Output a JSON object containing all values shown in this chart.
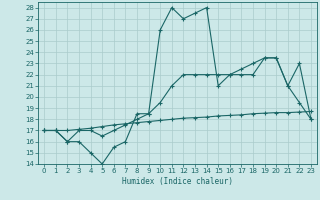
{
  "xlabel": "Humidex (Indice chaleur)",
  "bg_color": "#cce8e8",
  "grid_color": "#aacccc",
  "line_color": "#1a6666",
  "xlim": [
    -0.5,
    23.5
  ],
  "ylim": [
    14,
    28.5
  ],
  "xticks": [
    0,
    1,
    2,
    3,
    4,
    5,
    6,
    7,
    8,
    9,
    10,
    11,
    12,
    13,
    14,
    15,
    16,
    17,
    18,
    19,
    20,
    21,
    22,
    23
  ],
  "yticks": [
    14,
    15,
    16,
    17,
    18,
    19,
    20,
    21,
    22,
    23,
    24,
    25,
    26,
    27,
    28
  ],
  "line1_x": [
    0,
    1,
    2,
    3,
    4,
    5,
    6,
    7,
    8,
    9,
    10,
    11,
    12,
    13,
    14,
    15,
    16,
    17,
    18,
    19,
    20,
    21,
    22,
    23
  ],
  "line1_y": [
    17,
    17,
    16,
    16,
    15,
    14,
    15.5,
    16,
    18.5,
    18.5,
    26,
    28,
    27,
    27.5,
    28,
    21,
    22,
    22,
    22,
    23.5,
    23.5,
    21,
    23,
    18
  ],
  "line2_x": [
    0,
    1,
    2,
    3,
    4,
    5,
    6,
    7,
    8,
    9,
    10,
    11,
    12,
    13,
    14,
    15,
    16,
    17,
    18,
    19,
    20,
    21,
    22,
    23
  ],
  "line2_y": [
    17,
    17,
    16,
    17,
    17,
    16.5,
    17,
    17.5,
    18,
    18.5,
    19.5,
    21,
    22,
    22,
    22,
    22,
    22,
    22.5,
    23,
    23.5,
    23.5,
    21,
    19.5,
    18
  ],
  "line3_x": [
    0,
    1,
    2,
    3,
    4,
    5,
    6,
    7,
    8,
    9,
    10,
    11,
    12,
    13,
    14,
    15,
    16,
    17,
    18,
    19,
    20,
    21,
    22,
    23
  ],
  "line3_y": [
    17,
    17,
    17,
    17.1,
    17.2,
    17.35,
    17.5,
    17.6,
    17.7,
    17.8,
    17.9,
    18.0,
    18.1,
    18.15,
    18.2,
    18.3,
    18.35,
    18.4,
    18.5,
    18.55,
    18.6,
    18.6,
    18.65,
    18.7
  ]
}
